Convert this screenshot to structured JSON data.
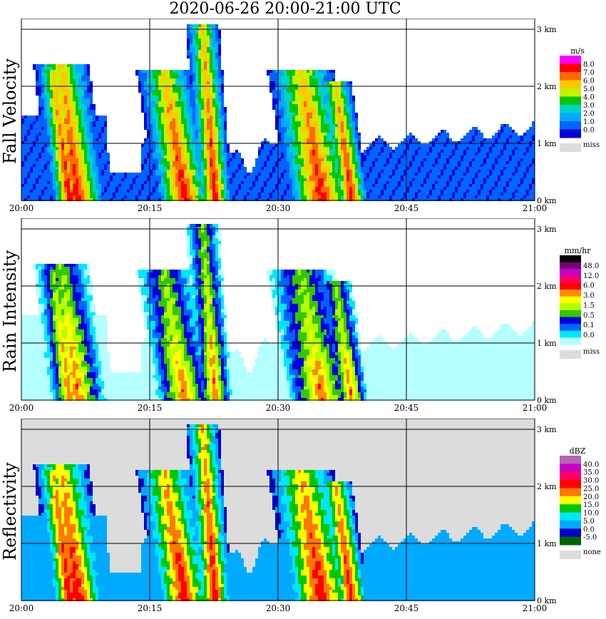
{
  "title": "2020-06-26   20:00-21:00 UTC",
  "x_ticks": [
    "20:00",
    "20:15",
    "20:30",
    "20:45",
    "21:00"
  ],
  "y_ticks": [
    "0 km",
    "1 km",
    "2 km",
    "3 km"
  ],
  "colors": {
    "background": "#ffffff",
    "missing": "#dcdcdc",
    "grid": "#000000"
  },
  "chart_data": [
    {
      "type": "heatmap",
      "title": "Fall Velocity",
      "unit": "m/s",
      "xlim": [
        "20:00",
        "21:00"
      ],
      "ylim": [
        0,
        3.2
      ],
      "grid": true,
      "legend_placement": "right",
      "colorbar": {
        "labels": [
          "8.0",
          "7.0",
          "6.0",
          "5.0",
          "4.0",
          "3.0",
          "2.0",
          "1.0",
          "0.0"
        ],
        "colors": [
          "#ff00ff",
          "#ff0000",
          "#ff6a00",
          "#ffc800",
          "#c8f000",
          "#00c800",
          "#00d2c8",
          "#00aaff",
          "#0064ff",
          "#0000dc"
        ],
        "missing_label": "miss"
      }
    },
    {
      "type": "heatmap",
      "title": "Rain Intensity",
      "unit": "mm/hr",
      "xlim": [
        "20:00",
        "21:00"
      ],
      "ylim": [
        0,
        3.2
      ],
      "grid": true,
      "legend_placement": "right",
      "colorbar": {
        "labels": [
          "48.0",
          "12.0",
          "6.0",
          "3.0",
          "1.5",
          "0.5",
          "0.1",
          "0.0"
        ],
        "colors": [
          "#000000",
          "#780078",
          "#c800c8",
          "#ff0064",
          "#ff0000",
          "#ff8c00",
          "#ffff00",
          "#b4ff00",
          "#32c800",
          "#0000dc",
          "#0064ff",
          "#00e6ff",
          "#b4ffff"
        ],
        "missing_label": "miss"
      }
    },
    {
      "type": "heatmap",
      "title": "Reflectivity",
      "unit": "dBZ",
      "xlim": [
        "20:00",
        "21:00"
      ],
      "ylim": [
        0,
        3.2
      ],
      "grid": true,
      "legend_placement": "right",
      "colorbar": {
        "labels": [
          "40.0",
          "35.0",
          "30.0",
          "25.0",
          "20.0",
          "15.0",
          "10.0",
          "5.0",
          "0.0",
          "-5.0"
        ],
        "colors": [
          "#b464b4",
          "#c800c8",
          "#ff0064",
          "#ff0000",
          "#ff7800",
          "#ffff00",
          "#00c800",
          "#00e6ff",
          "#00aaff",
          "#0000c8",
          "#006400"
        ],
        "missing_label": "none"
      }
    }
  ]
}
